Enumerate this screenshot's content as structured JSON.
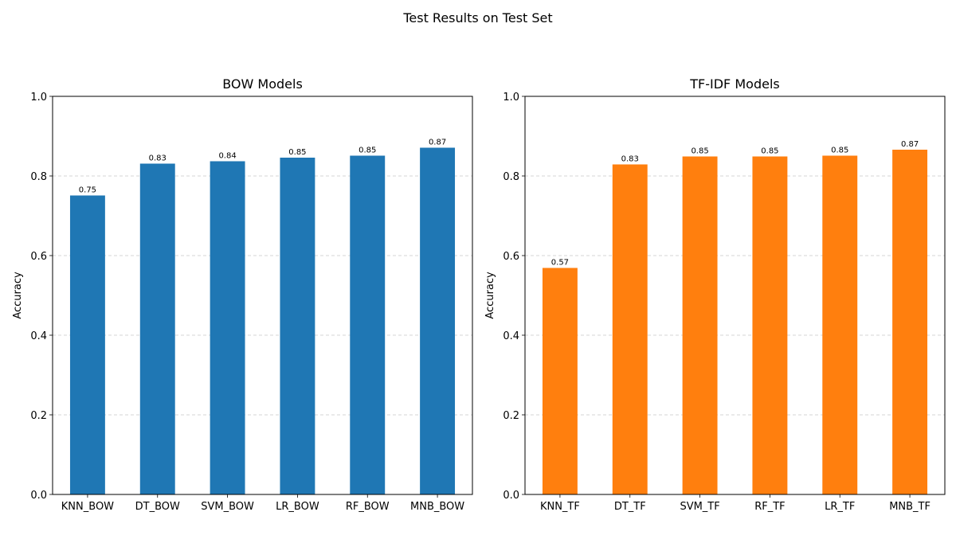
{
  "figure": {
    "suptitle": "Test Results on Test Set"
  },
  "chart_data": [
    {
      "type": "bar",
      "title": "BOW Models",
      "xlabel": "",
      "ylabel": "Accuracy",
      "ylim": [
        0,
        1.0
      ],
      "yticks": [
        "0.0",
        "0.2",
        "0.4",
        "0.6",
        "0.8",
        "1.0"
      ],
      "grid": "y-dashed",
      "color": "#1f77b4",
      "categories": [
        "KNN_BOW",
        "DT_BOW",
        "SVM_BOW",
        "LR_BOW",
        "RF_BOW",
        "MNB_BOW"
      ],
      "values": [
        0.751,
        0.831,
        0.837,
        0.846,
        0.851,
        0.871
      ],
      "value_labels": [
        "0.75",
        "0.83",
        "0.84",
        "0.85",
        "0.85",
        "0.87"
      ]
    },
    {
      "type": "bar",
      "title": "TF-IDF Models",
      "xlabel": "",
      "ylabel": "Accuracy",
      "ylim": [
        0,
        1.0
      ],
      "yticks": [
        "0.0",
        "0.2",
        "0.4",
        "0.6",
        "0.8",
        "1.0"
      ],
      "grid": "y-dashed",
      "color": "#ff7f0e",
      "categories": [
        "KNN_TF",
        "DT_TF",
        "SVM_TF",
        "RF_TF",
        "LR_TF",
        "MNB_TF"
      ],
      "values": [
        0.569,
        0.829,
        0.849,
        0.849,
        0.851,
        0.866
      ],
      "value_labels": [
        "0.57",
        "0.83",
        "0.85",
        "0.85",
        "0.85",
        "0.87"
      ]
    }
  ]
}
